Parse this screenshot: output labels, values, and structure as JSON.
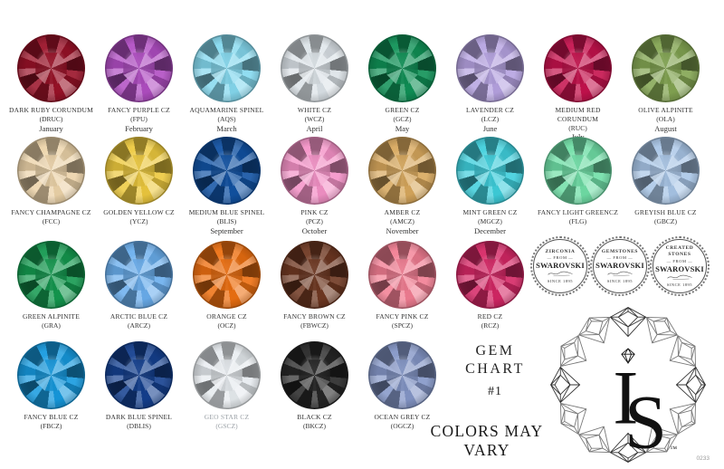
{
  "title": {
    "line1": "GEM",
    "line2": "CHART",
    "line3": "#1"
  },
  "disclaimer": "COLORS MAY VARY",
  "sheet_code": "0233",
  "logo": {
    "i": "I",
    "s": "S",
    "tm": "™"
  },
  "badges": [
    {
      "lines": [
        "ZIRCONIA"
      ],
      "from": "— FROM —",
      "brand": "SWAROVSKI",
      "since": "SINCE 1895"
    },
    {
      "lines": [
        "GEMSTONES"
      ],
      "from": "— FROM —",
      "brand": "SWAROVSKI",
      "since": "SINCE 1895"
    },
    {
      "lines": [
        "CREATED",
        "STONES"
      ],
      "from": "— FROM —",
      "brand": "SWAROVSKI",
      "since": "SINCE 1895"
    }
  ],
  "rows": [
    {
      "gems": [
        {
          "name": "DARK RUBY CORUNDUM",
          "code": "(DRUC)",
          "month": "January",
          "color": "#9A1228"
        },
        {
          "name": "FANCY PURPLE CZ",
          "code": "(FPU)",
          "month": "February",
          "color": "#B14EC3"
        },
        {
          "name": "AQUAMARINE SPINEL",
          "code": "(AQS)",
          "month": "March",
          "color": "#85D9EF"
        },
        {
          "name": "WHITE CZ",
          "code": "(WCZ)",
          "month": "April",
          "color": "#DCE3E8"
        },
        {
          "name": "GREEN CZ",
          "code": "(GCZ)",
          "month": "May",
          "color": "#0F9156"
        },
        {
          "name": "LAVENDER CZ",
          "code": "(LCZ)",
          "month": "June",
          "color": "#B6A3E1"
        },
        {
          "name": "MEDIUM RED CORUNDUM",
          "code": "(RUC)",
          "month": "July",
          "color": "#C5124D"
        },
        {
          "name": "OLIVE ALPINITE",
          "code": "(OLA)",
          "month": "August",
          "color": "#83A552"
        }
      ]
    },
    {
      "gems": [
        {
          "name": "FANCY CHAMPAGNE CZ",
          "code": "(FCC)",
          "month": "",
          "color": "#ECD3A9"
        },
        {
          "name": "GOLDEN YELLOW CZ",
          "code": "(YCZ)",
          "month": "",
          "color": "#EDC93E"
        },
        {
          "name": "MEDIUM BLUE SPINEL",
          "code": "(BLIS)",
          "month": "September",
          "color": "#1152A3"
        },
        {
          "name": "PINK CZ",
          "code": "(PCZ)",
          "month": "October",
          "color": "#F492C7"
        },
        {
          "name": "AMBER CZ",
          "code": "(AMCZ)",
          "month": "November",
          "color": "#D8A85D"
        },
        {
          "name": "MINT GREEN CZ",
          "code": "(MGCZ)",
          "month": "December",
          "color": "#3FCFDC"
        },
        {
          "name": "FANCY LIGHT GREENCZ",
          "code": "(FLG)",
          "month": "",
          "color": "#70DFA7"
        },
        {
          "name": "GREYISH BLUE CZ",
          "code": "(GBCZ)",
          "month": "",
          "color": "#A9C6E7"
        }
      ]
    },
    {
      "gems": [
        {
          "name": "GREEN ALPINITE",
          "code": "(GRA)",
          "month": "",
          "color": "#14994F"
        },
        {
          "name": "ARCTIC BLUE CZ",
          "code": "(ARCZ)",
          "month": "",
          "color": "#6AAEED"
        },
        {
          "name": "ORANGE CZ",
          "code": "(OCZ)",
          "month": "",
          "color": "#EE7011"
        },
        {
          "name": "FANCY BROWN CZ",
          "code": "(FBWCZ)",
          "month": "",
          "color": "#6F3822"
        },
        {
          "name": "FANCY PINK CZ",
          "code": "(SPCZ)",
          "month": "",
          "color": "#F27E93"
        },
        {
          "name": "RED CZ",
          "code": "(RCZ)",
          "month": "",
          "color": "#D52765"
        }
      ]
    },
    {
      "gems": [
        {
          "name": "FANCY BLUE CZ",
          "code": "(FBCZ)",
          "month": "",
          "color": "#169ADF"
        },
        {
          "name": "DARK BLUE SPINEL",
          "code": "(DBLIS)",
          "month": "",
          "color": "#14408F"
        },
        {
          "name": "GEO STAR CZ",
          "code": "(GSCZ)",
          "month": "",
          "color": "#E6EBEF",
          "muted": true
        },
        {
          "name": "BLACK CZ",
          "code": "(BKCZ)",
          "month": "",
          "color": "#262626"
        },
        {
          "name": "OCEAN GREY CZ",
          "code": "(OGCZ)",
          "month": "",
          "color": "#8496C7"
        }
      ]
    }
  ]
}
